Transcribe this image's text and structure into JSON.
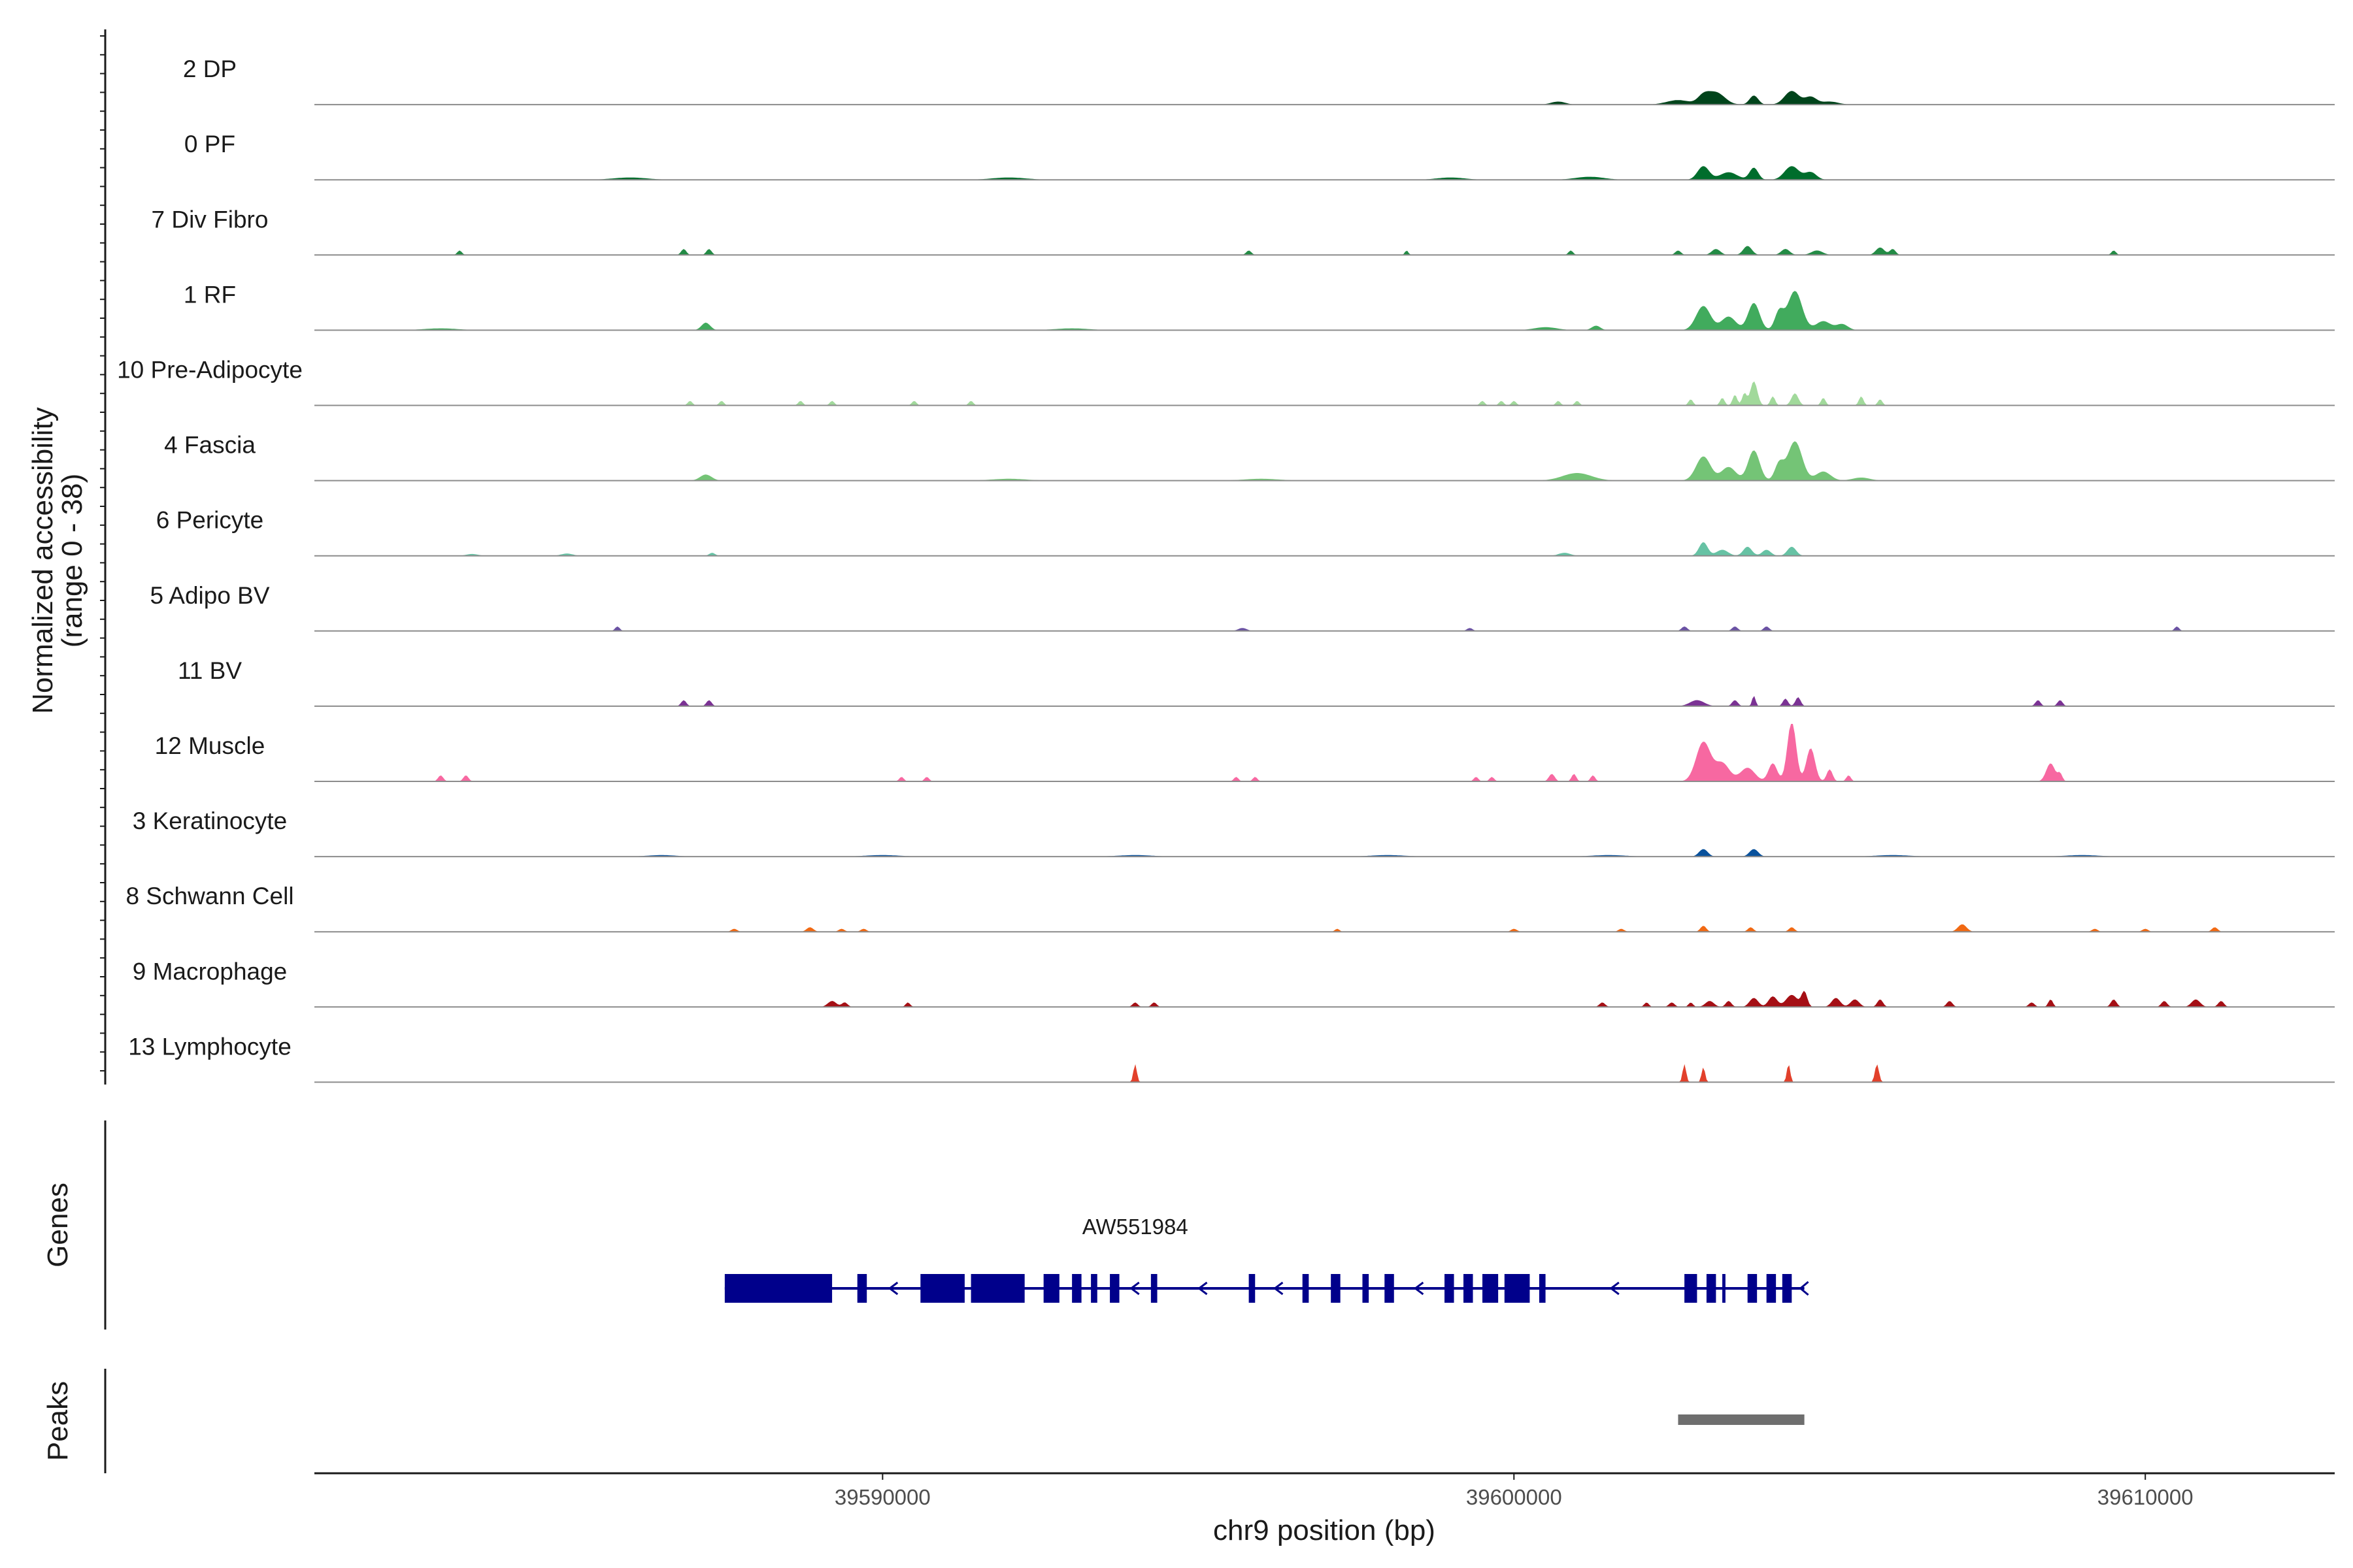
{
  "chart_data": {
    "type": "area",
    "ylabel": "Normalized accessibility",
    "ylabel_range": "(range 0 - 38)",
    "ylim": [
      0,
      38
    ],
    "xlabel": "chr9 position (bp)",
    "xlim": [
      39581000,
      39613000
    ],
    "x_ticks": [
      39590000,
      39600000,
      39610000
    ],
    "x_tick_labels": [
      "39590000",
      "39600000",
      "39610000"
    ],
    "genes_label": "Genes",
    "peaks_label": "Peaks",
    "tracks": [
      {
        "name": "2 DP",
        "color": "#00441b",
        "peaks": [
          [
            39603200,
            300,
            8
          ],
          [
            39603800,
            150,
            6
          ],
          [
            39604400,
            250,
            9
          ],
          [
            39603000,
            200,
            5
          ],
          [
            39604700,
            200,
            5
          ],
          [
            39600700,
            250,
            2
          ],
          [
            39602600,
            400,
            3
          ],
          [
            39605000,
            300,
            2
          ]
        ]
      },
      {
        "name": "0 PF",
        "color": "#006d2c",
        "peaks": [
          [
            39603000,
            200,
            9
          ],
          [
            39603800,
            150,
            8
          ],
          [
            39604400,
            250,
            9
          ],
          [
            39603400,
            300,
            5
          ],
          [
            39604700,
            200,
            5
          ],
          [
            39601200,
            500,
            2
          ],
          [
            39599000,
            500,
            1.5
          ],
          [
            39592000,
            600,
            1.5
          ],
          [
            39586000,
            600,
            1.5
          ]
        ]
      },
      {
        "name": "7 Div Fibro",
        "color": "#238b45",
        "peaks": [
          [
            39586850,
            90,
            4
          ],
          [
            39587250,
            90,
            4
          ],
          [
            39583300,
            80,
            3
          ],
          [
            39595800,
            90,
            3
          ],
          [
            39598300,
            60,
            3
          ],
          [
            39600900,
            80,
            3
          ],
          [
            39602600,
            100,
            3
          ],
          [
            39603200,
            150,
            4
          ],
          [
            39603700,
            150,
            6
          ],
          [
            39604300,
            150,
            4
          ],
          [
            39604800,
            200,
            3
          ],
          [
            39605800,
            150,
            5
          ],
          [
            39606000,
            100,
            4
          ],
          [
            39609500,
            80,
            3
          ]
        ]
      },
      {
        "name": "1 RF",
        "color": "#41ab5d",
        "peaks": [
          [
            39587200,
            150,
            5
          ],
          [
            39601300,
            150,
            3
          ],
          [
            39603000,
            250,
            16
          ],
          [
            39603800,
            200,
            18
          ],
          [
            39604450,
            250,
            26
          ],
          [
            39604200,
            150,
            12
          ],
          [
            39603400,
            250,
            9
          ],
          [
            39604900,
            250,
            6
          ],
          [
            39605200,
            200,
            4
          ],
          [
            39600500,
            400,
            2
          ],
          [
            39593000,
            600,
            1.2
          ],
          [
            39583000,
            600,
            1.2
          ]
        ]
      },
      {
        "name": "10 Pre-Adipocyte",
        "color": "#a1d99b",
        "peaks": [
          [
            39586950,
            80,
            3
          ],
          [
            39587450,
            80,
            3
          ],
          [
            39588700,
            80,
            3
          ],
          [
            39589200,
            80,
            3
          ],
          [
            39590500,
            80,
            3
          ],
          [
            39591400,
            80,
            3
          ],
          [
            39599500,
            80,
            3
          ],
          [
            39599800,
            80,
            3
          ],
          [
            39600000,
            80,
            3
          ],
          [
            39600700,
            80,
            3
          ],
          [
            39601000,
            80,
            3
          ],
          [
            39602800,
            80,
            4
          ],
          [
            39603300,
            80,
            5
          ],
          [
            39603500,
            80,
            7
          ],
          [
            39603800,
            120,
            16
          ],
          [
            39603650,
            80,
            8
          ],
          [
            39604100,
            80,
            6
          ],
          [
            39604450,
            120,
            8
          ],
          [
            39604900,
            80,
            5
          ],
          [
            39605500,
            80,
            6
          ],
          [
            39605800,
            80,
            4
          ]
        ]
      },
      {
        "name": "4 Fascia",
        "color": "#74c476",
        "peaks": [
          [
            39603000,
            250,
            16
          ],
          [
            39603800,
            200,
            20
          ],
          [
            39604450,
            250,
            26
          ],
          [
            39604200,
            150,
            11
          ],
          [
            39603400,
            250,
            9
          ],
          [
            39604900,
            250,
            6
          ],
          [
            39601000,
            500,
            5
          ],
          [
            39587200,
            200,
            4
          ],
          [
            39605500,
            300,
            2
          ],
          [
            39592000,
            600,
            1.2
          ],
          [
            39596000,
            600,
            1.2
          ]
        ]
      },
      {
        "name": "6 Pericyte",
        "color": "#66c2a4",
        "peaks": [
          [
            39603000,
            150,
            9
          ],
          [
            39603700,
            150,
            6
          ],
          [
            39604400,
            150,
            6
          ],
          [
            39603300,
            200,
            4
          ],
          [
            39604000,
            150,
            4
          ],
          [
            39600800,
            200,
            2
          ],
          [
            39587300,
            100,
            2
          ],
          [
            39585000,
            200,
            1.5
          ],
          [
            39583500,
            200,
            1.2
          ]
        ]
      },
      {
        "name": "5 Adipo BV",
        "color": "#6a51a3",
        "peaks": [
          [
            39585800,
            80,
            3
          ],
          [
            39595700,
            150,
            2
          ],
          [
            39602700,
            100,
            3
          ],
          [
            39603500,
            100,
            3
          ],
          [
            39604000,
            100,
            3
          ],
          [
            39610500,
            80,
            3
          ],
          [
            39599300,
            100,
            2
          ]
        ]
      },
      {
        "name": "11 BV",
        "color": "#7b3294",
        "peaks": [
          [
            39586850,
            90,
            4
          ],
          [
            39587250,
            90,
            4
          ],
          [
            39602900,
            250,
            4
          ],
          [
            39603500,
            100,
            4
          ],
          [
            39603800,
            60,
            7
          ],
          [
            39604300,
            90,
            5
          ],
          [
            39604500,
            90,
            6
          ],
          [
            39608300,
            90,
            4
          ],
          [
            39608650,
            90,
            4
          ]
        ]
      },
      {
        "name": "12 Muscle",
        "color": "#f768a1",
        "peaks": [
          [
            39583000,
            90,
            4
          ],
          [
            39583400,
            90,
            4
          ],
          [
            39590300,
            80,
            3
          ],
          [
            39590700,
            80,
            3
          ],
          [
            39595600,
            80,
            3
          ],
          [
            39595900,
            80,
            3
          ],
          [
            39599400,
            80,
            3
          ],
          [
            39599650,
            80,
            3
          ],
          [
            39600600,
            100,
            5
          ],
          [
            39600950,
            80,
            5
          ],
          [
            39601250,
            80,
            4
          ],
          [
            39603000,
            250,
            26
          ],
          [
            39603300,
            250,
            12
          ],
          [
            39603700,
            250,
            9
          ],
          [
            39604100,
            150,
            12
          ],
          [
            39604400,
            150,
            40
          ],
          [
            39604700,
            150,
            22
          ],
          [
            39605000,
            100,
            8
          ],
          [
            39605300,
            80,
            4
          ],
          [
            39608500,
            150,
            12
          ],
          [
            39608650,
            80,
            5
          ]
        ]
      },
      {
        "name": "3 Keratinocyte",
        "color": "#08519c",
        "peaks": [
          [
            39603000,
            150,
            5
          ],
          [
            39603800,
            150,
            5
          ],
          [
            39586500,
            500,
            1
          ],
          [
            39590000,
            600,
            1
          ],
          [
            39594000,
            600,
            1
          ],
          [
            39598000,
            600,
            1
          ],
          [
            39601500,
            600,
            1
          ],
          [
            39606000,
            600,
            1
          ],
          [
            39609000,
            600,
            1
          ]
        ]
      },
      {
        "name": "8 Schwann Cell",
        "color": "#f16913",
        "peaks": [
          [
            39587650,
            100,
            2
          ],
          [
            39588850,
            120,
            3
          ],
          [
            39589350,
            100,
            2
          ],
          [
            39589700,
            100,
            2
          ],
          [
            39597200,
            80,
            2
          ],
          [
            39600000,
            100,
            2
          ],
          [
            39601700,
            100,
            2
          ],
          [
            39603000,
            100,
            4
          ],
          [
            39603750,
            100,
            3
          ],
          [
            39604400,
            100,
            3
          ],
          [
            39607100,
            150,
            5
          ],
          [
            39609200,
            100,
            2
          ],
          [
            39610000,
            100,
            2
          ],
          [
            39611100,
            100,
            3
          ]
        ]
      },
      {
        "name": "9 Macrophage",
        "color": "#a50f15",
        "peaks": [
          [
            39589200,
            150,
            4
          ],
          [
            39589400,
            100,
            3
          ],
          [
            39590400,
            80,
            3
          ],
          [
            39594000,
            90,
            3
          ],
          [
            39594300,
            90,
            3
          ],
          [
            39601400,
            100,
            3
          ],
          [
            39602100,
            80,
            3
          ],
          [
            39602500,
            100,
            3
          ],
          [
            39602800,
            80,
            3
          ],
          [
            39603100,
            150,
            4
          ],
          [
            39603400,
            100,
            4
          ],
          [
            39603800,
            150,
            6
          ],
          [
            39604100,
            150,
            7
          ],
          [
            39604400,
            200,
            8
          ],
          [
            39604600,
            100,
            10
          ],
          [
            39605100,
            150,
            6
          ],
          [
            39605400,
            150,
            5
          ],
          [
            39605800,
            100,
            5
          ],
          [
            39606900,
            100,
            4
          ],
          [
            39608200,
            100,
            3
          ],
          [
            39608500,
            80,
            5
          ],
          [
            39609500,
            100,
            5
          ],
          [
            39610300,
            100,
            4
          ],
          [
            39610800,
            150,
            5
          ],
          [
            39611200,
            100,
            4
          ]
        ]
      },
      {
        "name": "13 Lymphocyte",
        "color": "#e2402b",
        "peaks": [
          [
            39594000,
            60,
            12
          ],
          [
            39602700,
            60,
            12
          ],
          [
            39603000,
            60,
            10
          ],
          [
            39604350,
            60,
            12
          ],
          [
            39605750,
            70,
            12
          ]
        ]
      }
    ],
    "genes": [
      {
        "name": "AW551984",
        "strand": "-",
        "start": 39587500,
        "end": 39604600,
        "color": "#00008b",
        "exons": [
          [
            39587500,
            39589200
          ],
          [
            39589600,
            39589750
          ],
          [
            39590600,
            39591300
          ],
          [
            39591400,
            39592250
          ],
          [
            39592550,
            39592800
          ],
          [
            39593000,
            39593150
          ],
          [
            39593300,
            39593400
          ],
          [
            39593600,
            39593750
          ],
          [
            39594250,
            39594350
          ],
          [
            39595800,
            39595900
          ],
          [
            39596650,
            39596750
          ],
          [
            39597100,
            39597250
          ],
          [
            39597600,
            39597700
          ],
          [
            39597950,
            39598100
          ],
          [
            39598900,
            39599050
          ],
          [
            39599200,
            39599350
          ],
          [
            39599500,
            39599750
          ],
          [
            39599850,
            39600250
          ],
          [
            39600400,
            39600500
          ],
          [
            39602700,
            39602900
          ],
          [
            39603050,
            39603200
          ],
          [
            39603300,
            39603350
          ],
          [
            39603700,
            39603850
          ],
          [
            39604000,
            39604150
          ],
          [
            39604250,
            39604400
          ]
        ]
      }
    ],
    "peak_regions": [
      [
        39602600,
        39604600
      ]
    ]
  }
}
